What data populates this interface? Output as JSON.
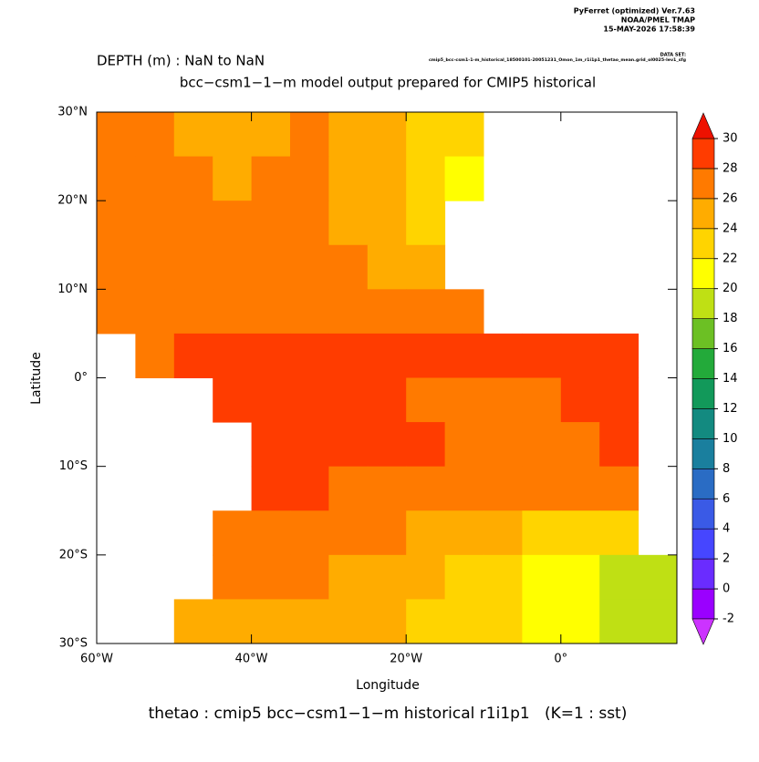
{
  "chart_data": {
    "type": "map",
    "header_lines": [
      "PyFerret (optimized) Ver.7.63",
      "NOAA/PMEL TMAP",
      "15-MAY-2026 17:58:39"
    ],
    "dataset_label": "DATA SET:",
    "dataset_name": "cmip5_bcc-csm1-1-m_historical_18500101-20051231_Omon_1m_r1i1p1_thetao_mean.grid_ol0025-lev1_sfg",
    "title": "DEPTH (m) : NaN to NaN",
    "subtitle": "bcc−csm1−1−m model output prepared for CMIP5 historical",
    "footer": "thetao : cmip5 bcc−csm1−1−m historical r1i1p1   (K=1 : sst)",
    "x_label": "Longitude",
    "y_label": "Latitude",
    "xlim": [
      -60,
      15
    ],
    "ylim": [
      -30,
      30
    ],
    "xticks": [
      {
        "value": -60,
        "label": "60°W"
      },
      {
        "value": -40,
        "label": "40°W"
      },
      {
        "value": -20,
        "label": "20°W"
      },
      {
        "value": 0,
        "label": "0°"
      }
    ],
    "yticks": [
      {
        "value": -30,
        "label": "30°S"
      },
      {
        "value": -20,
        "label": "20°S"
      },
      {
        "value": -10,
        "label": "10°S"
      },
      {
        "value": 0,
        "label": "0°"
      },
      {
        "value": 10,
        "label": "10°N"
      },
      {
        "value": 20,
        "label": "20°N"
      },
      {
        "value": 30,
        "label": "30°N"
      }
    ],
    "lon": [
      -57.5,
      -52.5,
      -47.5,
      -42.5,
      -37.5,
      -32.5,
      -27.5,
      -22.5,
      -17.5,
      -12.5,
      -7.5,
      -2.5,
      2.5,
      7.5,
      12.5
    ],
    "lat": [
      27.5,
      22.5,
      17.5,
      12.5,
      7.5,
      2.5,
      -2.5,
      -7.5,
      -12.5,
      -17.5,
      -22.5,
      -27.5
    ],
    "cell_size": 5,
    "values": [
      [
        26,
        26,
        25,
        24,
        25,
        26,
        25,
        24,
        23,
        22,
        null,
        null,
        null,
        null,
        null
      ],
      [
        26,
        26,
        26,
        25,
        26,
        26,
        25,
        24,
        22,
        21,
        null,
        null,
        null,
        null,
        null
      ],
      [
        27,
        26,
        26,
        26,
        26,
        26,
        25,
        24,
        23,
        null,
        null,
        null,
        null,
        null,
        null
      ],
      [
        27,
        27,
        27,
        27,
        27,
        26,
        26,
        25,
        25,
        null,
        null,
        null,
        null,
        null,
        null
      ],
      [
        27,
        27,
        27,
        27,
        27,
        27,
        27,
        27,
        27,
        27,
        null,
        null,
        null,
        null,
        null
      ],
      [
        null,
        27,
        28,
        28,
        28,
        28,
        28,
        28,
        28,
        28,
        28,
        28,
        28,
        28,
        null
      ],
      [
        null,
        null,
        null,
        28,
        28,
        28,
        28,
        28,
        27,
        27,
        27,
        27,
        28,
        28,
        null
      ],
      [
        null,
        null,
        null,
        null,
        28,
        28,
        28,
        28,
        28,
        27,
        27,
        27,
        27,
        28,
        null
      ],
      [
        null,
        null,
        null,
        null,
        28,
        28,
        27,
        27,
        27,
        26,
        26,
        26,
        26,
        26,
        null
      ],
      [
        null,
        null,
        null,
        27,
        27,
        27,
        26,
        26,
        25,
        24,
        24,
        23,
        23,
        23,
        null
      ],
      [
        null,
        null,
        null,
        26,
        26,
        26,
        25,
        25,
        24,
        23,
        22,
        21,
        21,
        18,
        19
      ],
      [
        null,
        null,
        25,
        25,
        25,
        24,
        24,
        24,
        23,
        22,
        22,
        21,
        20,
        19,
        18
      ]
    ],
    "levels": [
      -2,
      0,
      2,
      4,
      6,
      8,
      10,
      12,
      14,
      16,
      18,
      20,
      22,
      24,
      26,
      28,
      30
    ],
    "colors": [
      "#9a00ff",
      "#6a2cff",
      "#4646ff",
      "#3a5ae6",
      "#2a6cc4",
      "#1a7f9e",
      "#138a80",
      "#12995a",
      "#23aa3a",
      "#6cc024",
      "#bfe014",
      "#ffff00",
      "#ffd400",
      "#ffac00",
      "#ff7a00",
      "#ff3c00"
    ],
    "under_color": "#cc33ff",
    "over_color": "#ee1100"
  }
}
